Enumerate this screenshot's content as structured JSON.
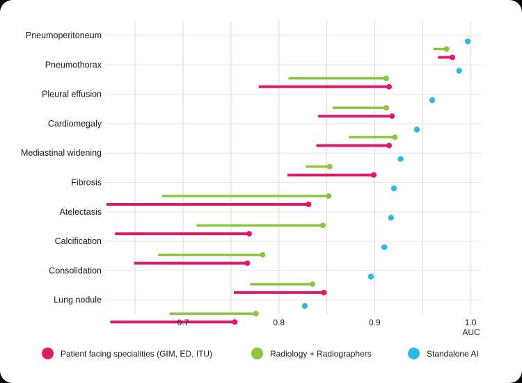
{
  "chart_data": {
    "type": "dumbbell",
    "xlabel": "AUC",
    "xlim": [
      0.62,
      1.0
    ],
    "xticks": [
      0.7,
      0.8,
      0.9,
      1.0
    ],
    "tick_labels": [
      "0.7",
      "0.8",
      "0.9",
      "1.0"
    ],
    "grid": true,
    "legend_position": "bottom",
    "categories": [
      "Pneumoperitoneum",
      "Pneumothorax",
      "Pleural effusion",
      "Cardiomegaly",
      "Mediastinal widening",
      "Fibrosis",
      "Atelectasis",
      "Calcification",
      "Consolidation",
      "Lung nodule"
    ],
    "series": [
      {
        "name": "Patient facing specialities (GIM, ED, ITU)",
        "color": "#e0196b",
        "ranges": [
          [
            0.966,
            0.981
          ],
          [
            0.779,
            0.915
          ],
          [
            0.841,
            0.918
          ],
          [
            0.839,
            0.915
          ],
          [
            0.809,
            0.899
          ],
          [
            0.62,
            0.831
          ],
          [
            0.629,
            0.769
          ],
          [
            0.649,
            0.767
          ],
          [
            0.753,
            0.847
          ],
          [
            0.624,
            0.754
          ]
        ]
      },
      {
        "name": "Radiology + Radiographers",
        "color": "#8cc63f",
        "ranges": [
          [
            0.961,
            0.975
          ],
          [
            0.81,
            0.912
          ],
          [
            0.856,
            0.912
          ],
          [
            0.873,
            0.921
          ],
          [
            0.828,
            0.853
          ],
          [
            0.678,
            0.852
          ],
          [
            0.714,
            0.846
          ],
          [
            0.674,
            0.783
          ],
          [
            0.77,
            0.835
          ],
          [
            0.686,
            0.776
          ]
        ]
      },
      {
        "name": "Standalone AI",
        "color": "#29bde6",
        "values": [
          0.997,
          0.988,
          0.96,
          0.944,
          0.927,
          0.92,
          0.917,
          0.91,
          0.896,
          0.827
        ]
      }
    ]
  }
}
